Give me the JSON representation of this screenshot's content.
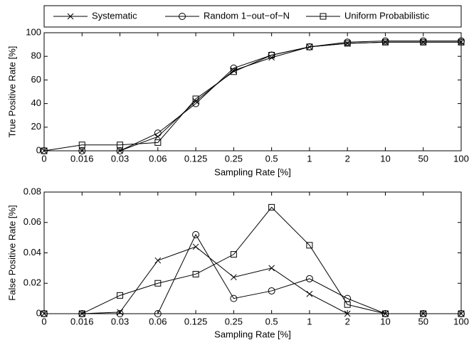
{
  "chart_data": [
    {
      "type": "line",
      "xlabel": "Sampling Rate [%]",
      "ylabel": "True Positive Rate [%]",
      "categories": [
        "0",
        "0.016",
        "0.03",
        "0.06",
        "0.125",
        "0.25",
        "0.5",
        "1",
        "2",
        "10",
        "50",
        "100"
      ],
      "ylim": [
        0,
        100
      ],
      "yticks": [
        0,
        20,
        40,
        60,
        80,
        100
      ],
      "legend": "top",
      "series": [
        {
          "name": "Systematic",
          "color": "#000000",
          "marker": "x",
          "values": [
            0,
            0,
            0,
            12,
            42,
            68,
            79,
            88,
            91,
            92,
            92,
            92
          ]
        },
        {
          "name": "Random 1−out−of−N",
          "color": "#000000",
          "marker": "o",
          "values": [
            0,
            0,
            0,
            15,
            40,
            70,
            81,
            88,
            92,
            93,
            93,
            93
          ]
        },
        {
          "name": "Uniform Probabilistic",
          "color": "#000000",
          "marker": "s",
          "values": [
            0,
            5,
            5,
            7,
            44,
            67,
            81,
            88,
            91,
            92,
            92,
            92
          ]
        }
      ]
    },
    {
      "type": "line",
      "xlabel": "Sampling Rate [%]",
      "ylabel": "False Positive Rate [%]",
      "categories": [
        "0",
        "0.016",
        "0.03",
        "0.06",
        "0.125",
        "0.25",
        "0.5",
        "1",
        "2",
        "10",
        "50",
        "100"
      ],
      "ylim": [
        0,
        0.08
      ],
      "yticks": [
        0,
        0.02,
        0.04,
        0.06,
        0.08
      ],
      "series": [
        {
          "color": "#000000",
          "marker": "x",
          "values": [
            0,
            0,
            0.001,
            0.035,
            0.044,
            0.024,
            0.03,
            0.013,
            0,
            0,
            0,
            0
          ]
        },
        {
          "color": "#000000",
          "marker": "o",
          "values": [
            0,
            0,
            0,
            0,
            0.052,
            0.01,
            0.015,
            0.023,
            0.01,
            0,
            0,
            0
          ]
        },
        {
          "color": "#000000",
          "marker": "s",
          "values": [
            0,
            0,
            0.012,
            0.02,
            0.026,
            0.039,
            0.07,
            0.045,
            0.006,
            0,
            0,
            0
          ]
        }
      ]
    }
  ]
}
